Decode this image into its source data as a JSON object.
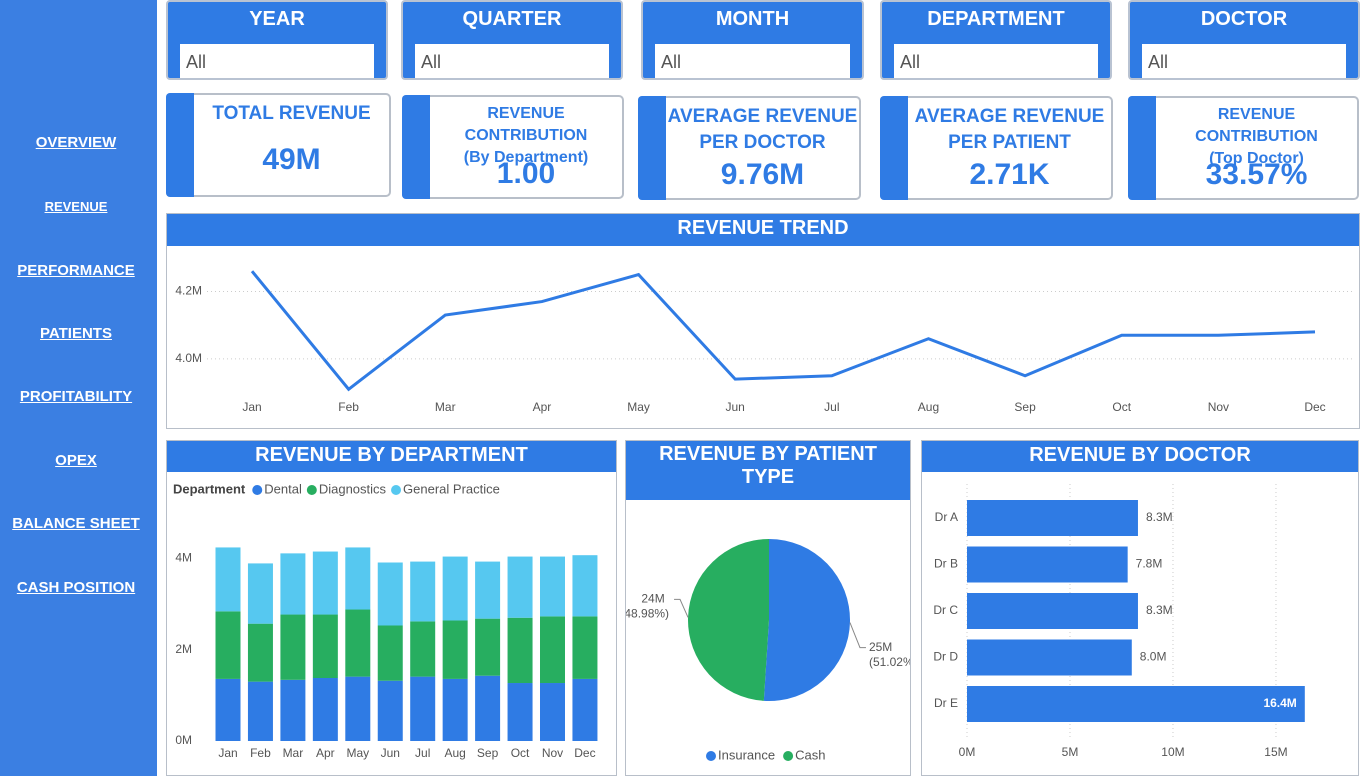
{
  "nav": [
    "OVERVIEW",
    "REVENUE",
    "PERFORMANCE",
    "PATIENTS",
    "PROFITABILITY",
    "OPEX",
    "BALANCE SHEET",
    "CASH POSITION"
  ],
  "filters": [
    {
      "label": "YEAR",
      "value": "All"
    },
    {
      "label": "QUARTER",
      "value": "All"
    },
    {
      "label": "MONTH",
      "value": "All"
    },
    {
      "label": "DEPARTMENT",
      "value": "All"
    },
    {
      "label": "DOCTOR",
      "value": "All"
    }
  ],
  "kpis": [
    {
      "title_lines": [
        "TOTAL REVENUE"
      ],
      "value": "49M"
    },
    {
      "title_lines": [
        "REVENUE CONTRIBUTION",
        "(By Department)"
      ],
      "value": "1.00"
    },
    {
      "title_lines": [
        "AVERAGE REVENUE",
        "PER DOCTOR"
      ],
      "value": "9.76M"
    },
    {
      "title_lines": [
        "AVERAGE REVENUE",
        "PER PATIENT"
      ],
      "value": "2.71K"
    },
    {
      "title_lines": [
        "REVENUE CONTRIBUTION",
        "(Top Doctor)"
      ],
      "value": "33.57%"
    }
  ],
  "chart_data": [
    {
      "type": "line",
      "title": "REVENUE TREND",
      "color": "#2f7be4",
      "categories": [
        "Jan",
        "Feb",
        "Mar",
        "Apr",
        "May",
        "Jun",
        "Jul",
        "Aug",
        "Sep",
        "Oct",
        "Nov",
        "Dec"
      ],
      "values": [
        4260000,
        3910000,
        4130000,
        4170000,
        4250000,
        3940000,
        3950000,
        4060000,
        3950000,
        4070000,
        4070000,
        4080000
      ],
      "ylim": [
        3890000,
        4320000
      ],
      "yticks": [
        {
          "value": 4000000,
          "label": "4.0M"
        },
        {
          "value": 4200000,
          "label": "4.2M"
        }
      ],
      "grid": true
    },
    {
      "type": "stacked_bar",
      "title": "REVENUE BY DEPARTMENT",
      "legend_title": "Department",
      "categories": [
        "Jan",
        "Feb",
        "Mar",
        "Apr",
        "May",
        "Jun",
        "Jul",
        "Aug",
        "Sep",
        "Oct",
        "Nov",
        "Dec"
      ],
      "series": [
        {
          "name": "Dental",
          "color": "#2f7be4",
          "values": [
            1360000,
            1300000,
            1340000,
            1380000,
            1410000,
            1320000,
            1410000,
            1360000,
            1430000,
            1270000,
            1270000,
            1360000
          ]
        },
        {
          "name": "Diagnostics",
          "color": "#27ae60",
          "values": [
            1480000,
            1270000,
            1430000,
            1390000,
            1470000,
            1210000,
            1210000,
            1280000,
            1250000,
            1430000,
            1460000,
            1370000
          ]
        },
        {
          "name": "General Practice",
          "color": "#56c8f0",
          "values": [
            1400000,
            1320000,
            1340000,
            1380000,
            1360000,
            1380000,
            1310000,
            1400000,
            1250000,
            1340000,
            1310000,
            1340000
          ]
        }
      ],
      "ylim": [
        0,
        4600000
      ],
      "yticks": [
        {
          "value": 0,
          "label": "0M"
        },
        {
          "value": 2000000,
          "label": "2M"
        },
        {
          "value": 4000000,
          "label": "4M"
        }
      ]
    },
    {
      "type": "pie",
      "title": "REVENUE BY PATIENT TYPE",
      "categories": [
        "Insurance",
        "Cash"
      ],
      "colors": [
        "#2f7be4",
        "#27ae60"
      ],
      "values": [
        51.02,
        48.98
      ],
      "value_labels": [
        "(51.02%)",
        "(48.98%)"
      ],
      "amounts": [
        25000000,
        24000000
      ],
      "amount_labels": [
        "25M",
        "24M"
      ]
    },
    {
      "type": "hbar",
      "title": "REVENUE BY DOCTOR",
      "color": "#2f7be4",
      "categories": [
        "Dr A",
        "Dr B",
        "Dr C",
        "Dr D",
        "Dr E"
      ],
      "values": [
        8300000,
        7800000,
        8300000,
        8000000,
        16400000
      ],
      "value_labels": [
        "8.3M",
        "7.8M",
        "8.3M",
        "8.0M",
        "16.4M"
      ],
      "xlim": [
        0,
        18400000
      ],
      "xticks": [
        {
          "value": 0,
          "label": "0M"
        },
        {
          "value": 5000000,
          "label": "5M"
        },
        {
          "value": 10000000,
          "label": "10M"
        },
        {
          "value": 15000000,
          "label": "15M"
        }
      ],
      "grid": true
    }
  ]
}
